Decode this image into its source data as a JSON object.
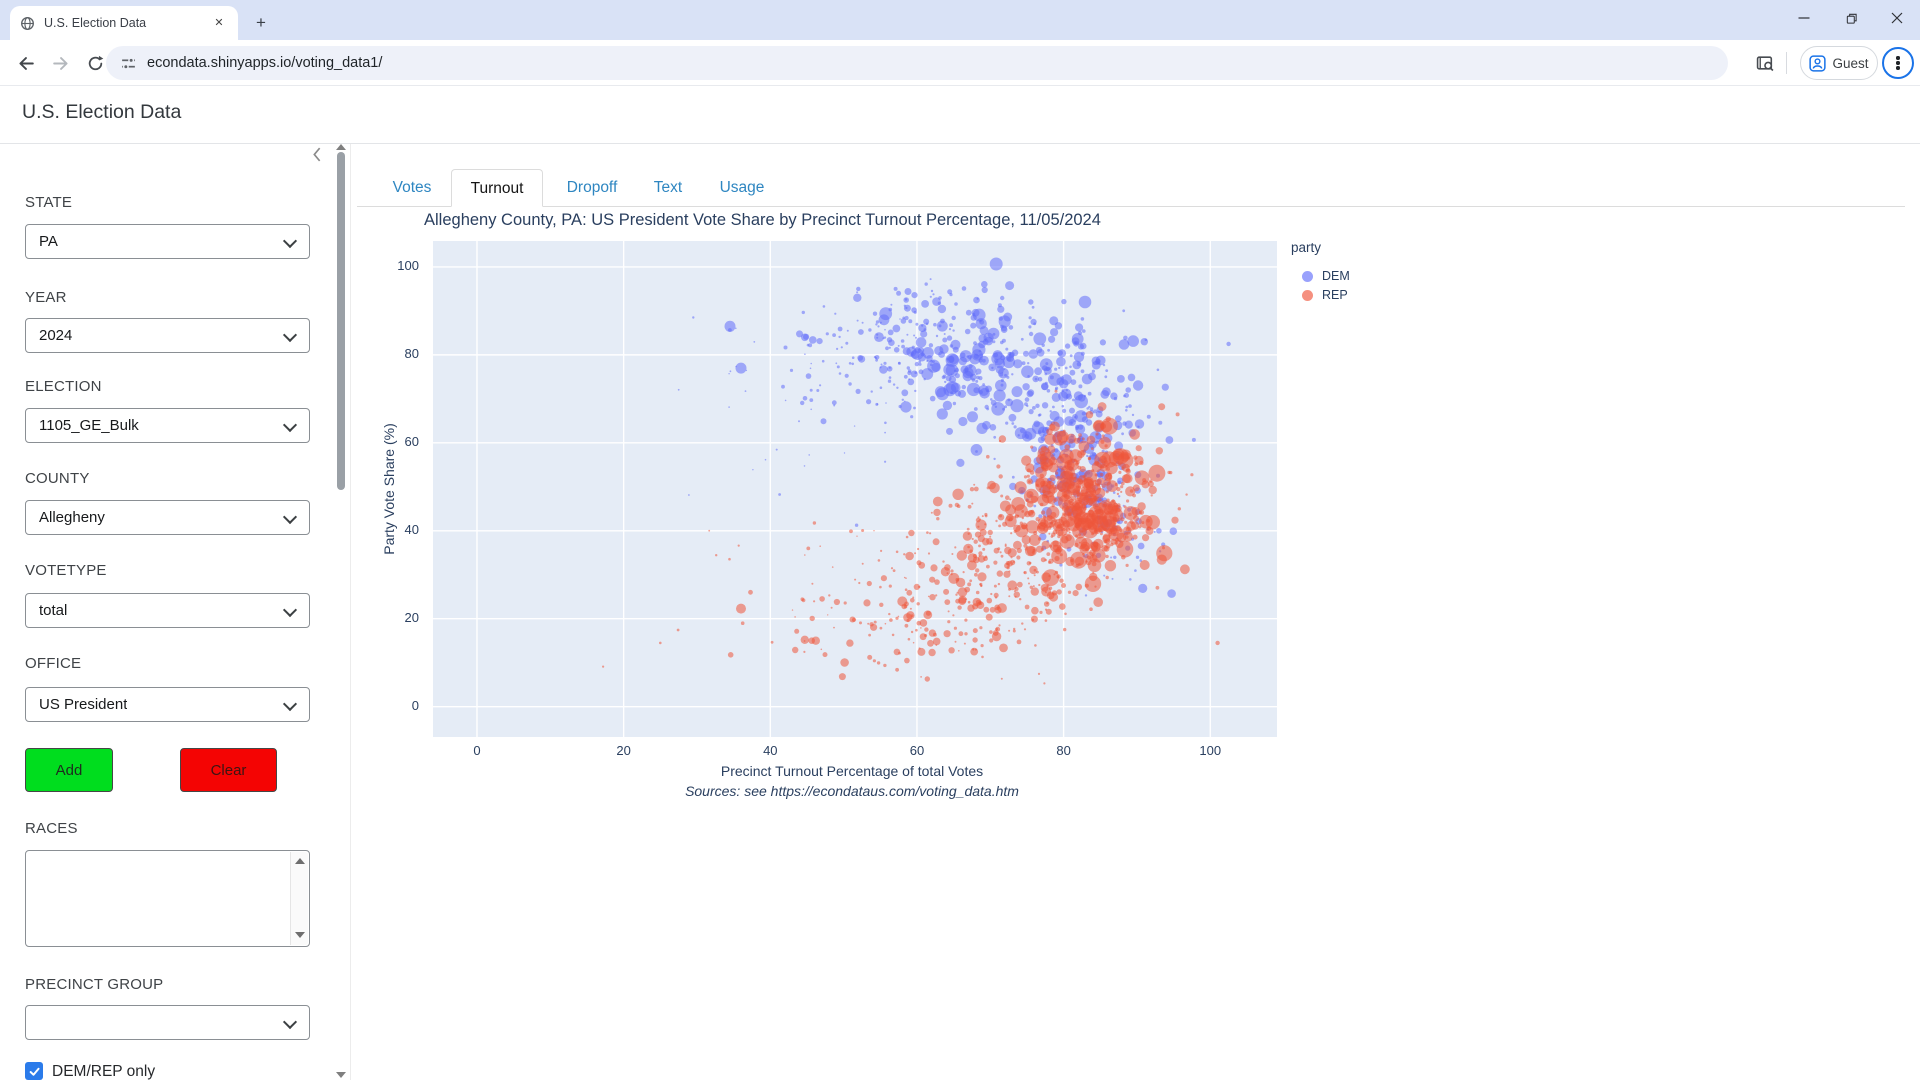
{
  "browser": {
    "tab_title": "U.S. Election Data",
    "url": "econdata.shinyapps.io/voting_data1/",
    "profile_label": "Guest",
    "new_tab_glyph": "+",
    "accent_color": "#1a73e8"
  },
  "page": {
    "title": "U.S. Election Data"
  },
  "sidebar": {
    "collapse_icon": "chevron-left",
    "fields": [
      {
        "label": "STATE",
        "value": "PA"
      },
      {
        "label": "YEAR",
        "value": "2024"
      },
      {
        "label": "ELECTION",
        "value": "1105_GE_Bulk"
      },
      {
        "label": "COUNTY",
        "value": "Allegheny"
      },
      {
        "label": "VOTETYPE",
        "value": "total"
      },
      {
        "label": "OFFICE",
        "value": "US President"
      }
    ],
    "add_label": "Add",
    "add_color": "#00dd1e",
    "clear_label": "Clear",
    "clear_color": "#f40403",
    "races_label": "RACES",
    "races_value": "",
    "precinct_group_label": "PRECINCT GROUP",
    "precinct_group_value": "",
    "demrep_label": "DEM/REP only",
    "demrep_checked": true
  },
  "tabs": [
    {
      "label": "Votes",
      "active": false
    },
    {
      "label": "Turnout",
      "active": true
    },
    {
      "label": "Dropoff",
      "active": false
    },
    {
      "label": "Text",
      "active": false
    },
    {
      "label": "Usage",
      "active": false
    }
  ],
  "chart_data": {
    "type": "scatter",
    "title": "Allegheny County, PA: US President Vote Share by Precinct Turnout Percentage, 11/05/2024",
    "xlabel": "Precinct Turnout Percentage of total Votes",
    "ylabel": "Party Vote Share (%)",
    "caption": "Sources: see https://econdataus.com/voting_data.htm",
    "legend_title": "party",
    "legend_position": "right-top",
    "grid": true,
    "plot_bg": "#e5ecf6",
    "text_color": "#2a3f5f",
    "xlim": [
      -6,
      109.1
    ],
    "ylim": [
      -6.9,
      105.9
    ],
    "xticks": [
      0,
      20,
      40,
      60,
      80,
      100
    ],
    "yticks": [
      0,
      20,
      40,
      60,
      80,
      100
    ],
    "series": [
      {
        "name": "DEM",
        "color": "#636efa",
        "opacity": 0.55
      },
      {
        "name": "REP",
        "color": "#ef553b",
        "opacity": 0.55
      }
    ],
    "point_generator": {
      "note": "statistical reconstruction of ~1700 precinct bubbles (size = precinct votes)",
      "seed": 20241105,
      "clusters": [
        {
          "party": "DEM",
          "n": 300,
          "cx": 71,
          "cy": 77,
          "sx": 8.5,
          "sy": 8,
          "rmin": 1.2,
          "rmax": 7
        },
        {
          "party": "DEM",
          "n": 230,
          "cx": 82,
          "cy": 58,
          "sx": 4.5,
          "sy": 8.5,
          "rmin": 1.2,
          "rmax": 6
        },
        {
          "party": "DEM",
          "n": 90,
          "cx": 60,
          "cy": 85,
          "sx": 7,
          "sy": 5.5,
          "rmin": 1,
          "rmax": 4.5
        },
        {
          "party": "DEM",
          "n": 70,
          "cx": 52,
          "cy": 77,
          "sx": 8,
          "sy": 9,
          "rmin": 0.8,
          "rmax": 3.5
        },
        {
          "party": "DEM",
          "n": 55,
          "cx": 86,
          "cy": 40,
          "sx": 4,
          "sy": 7,
          "rmin": 1,
          "rmax": 5
        },
        {
          "party": "DEM",
          "n": 25,
          "cx": 45,
          "cy": 68,
          "sx": 9,
          "sy": 11,
          "rmin": 0.7,
          "rmax": 2.2
        },
        {
          "party": "REP",
          "n": 430,
          "cx": 83.5,
          "cy": 47,
          "sx": 4.8,
          "sy": 8,
          "rmin": 1.5,
          "rmax": 8.5
        },
        {
          "party": "REP",
          "n": 230,
          "cx": 76,
          "cy": 37,
          "sx": 7,
          "sy": 8.5,
          "rmin": 1,
          "rmax": 6
        },
        {
          "party": "REP",
          "n": 160,
          "cx": 66,
          "cy": 25,
          "sx": 8.5,
          "sy": 8.5,
          "rmin": 1,
          "rmax": 5
        },
        {
          "party": "REP",
          "n": 60,
          "cx": 56,
          "cy": 17,
          "sx": 7.5,
          "sy": 4.5,
          "rmin": 0.8,
          "rmax": 4
        },
        {
          "party": "REP",
          "n": 25,
          "cx": 48,
          "cy": 30,
          "sx": 10,
          "sy": 9,
          "rmin": 0.7,
          "rmax": 2.2
        }
      ]
    },
    "highlight_points": [
      {
        "party": "DEM",
        "x": 34.5,
        "y": 86.5,
        "r": 5.5
      },
      {
        "party": "DEM",
        "x": 36,
        "y": 77,
        "r": 5.5
      },
      {
        "party": "DEM",
        "x": 44.7,
        "y": 84,
        "r": 3.8
      },
      {
        "party": "DEM",
        "x": 45.8,
        "y": 83.4,
        "r": 3.8
      },
      {
        "party": "DEM",
        "x": 52,
        "y": 95,
        "r": 2.2
      },
      {
        "party": "DEM",
        "x": 57.5,
        "y": 94,
        "r": 2.5
      },
      {
        "party": "DEM",
        "x": 102.5,
        "y": 82.5,
        "r": 2.2
      },
      {
        "party": "DEM",
        "x": 29.5,
        "y": 88.5,
        "r": 1.2
      },
      {
        "party": "REP",
        "x": 36,
        "y": 22.3,
        "r": 5
      },
      {
        "party": "REP",
        "x": 44.7,
        "y": 15.2,
        "r": 4.2
      },
      {
        "party": "REP",
        "x": 46.2,
        "y": 15,
        "r": 4.2
      },
      {
        "party": "REP",
        "x": 34.6,
        "y": 11.8,
        "r": 2.8
      },
      {
        "party": "REP",
        "x": 37.3,
        "y": 26,
        "r": 2.4
      },
      {
        "party": "REP",
        "x": 101,
        "y": 14.5,
        "r": 2.2
      },
      {
        "party": "REP",
        "x": 25,
        "y": 14.5,
        "r": 1.3
      },
      {
        "party": "REP",
        "x": 17.2,
        "y": 9.1,
        "r": 1.1
      }
    ]
  }
}
